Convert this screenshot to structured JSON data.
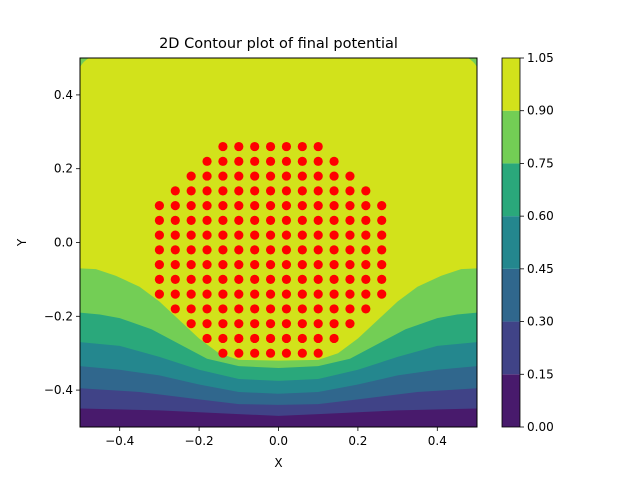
{
  "chart_data": {
    "type": "contour",
    "title": "2D Contour plot of final potential",
    "xlabel": "X",
    "ylabel": "Y",
    "xlim": [
      -0.5,
      0.5
    ],
    "ylim": [
      -0.5,
      0.5
    ],
    "x_ticks": [
      -0.4,
      -0.2,
      0.0,
      0.2,
      0.4
    ],
    "y_ticks": [
      -0.4,
      -0.2,
      0.0,
      0.2,
      0.4
    ],
    "x_tick_labels": [
      "−0.4",
      "−0.2",
      "0.0",
      "0.2",
      "0.4"
    ],
    "y_tick_labels": [
      "−0.4",
      "−0.2",
      "0.0",
      "0.2",
      "0.4"
    ],
    "grid": false,
    "colormap": "viridis",
    "contour_levels": [
      0.0,
      0.15,
      0.3,
      0.45,
      0.6,
      0.75,
      0.9,
      1.05
    ],
    "colorbar": {
      "ticks": [
        "0.00",
        "0.15",
        "0.30",
        "0.45",
        "0.60",
        "0.75",
        "0.90",
        "1.05"
      ],
      "band_colors": [
        "#481a6c",
        "#404387",
        "#30678d",
        "#24878e",
        "#2aa87b",
        "#73ce55",
        "#d2e21b"
      ]
    },
    "band_boundaries": [
      {
        "level": 0.15,
        "points": [
          [
            -0.5,
            -0.45
          ],
          [
            -0.3,
            -0.455
          ],
          [
            -0.1,
            -0.465
          ],
          [
            0.0,
            -0.47
          ],
          [
            0.1,
            -0.465
          ],
          [
            0.3,
            -0.455
          ],
          [
            0.5,
            -0.45
          ]
        ]
      },
      {
        "level": 0.3,
        "points": [
          [
            -0.5,
            -0.395
          ],
          [
            -0.35,
            -0.405
          ],
          [
            -0.2,
            -0.425
          ],
          [
            -0.1,
            -0.438
          ],
          [
            0.0,
            -0.44
          ],
          [
            0.1,
            -0.438
          ],
          [
            0.2,
            -0.425
          ],
          [
            0.35,
            -0.405
          ],
          [
            0.5,
            -0.395
          ]
        ]
      },
      {
        "level": 0.45,
        "points": [
          [
            -0.5,
            -0.335
          ],
          [
            -0.4,
            -0.345
          ],
          [
            -0.3,
            -0.36
          ],
          [
            -0.2,
            -0.385
          ],
          [
            -0.1,
            -0.405
          ],
          [
            0.0,
            -0.41
          ],
          [
            0.1,
            -0.405
          ],
          [
            0.2,
            -0.385
          ],
          [
            0.3,
            -0.36
          ],
          [
            0.4,
            -0.345
          ],
          [
            0.5,
            -0.335
          ]
        ]
      },
      {
        "level": 0.6,
        "points": [
          [
            -0.5,
            -0.27
          ],
          [
            -0.4,
            -0.28
          ],
          [
            -0.3,
            -0.31
          ],
          [
            -0.2,
            -0.345
          ],
          [
            -0.1,
            -0.37
          ],
          [
            0.0,
            -0.375
          ],
          [
            0.1,
            -0.37
          ],
          [
            0.2,
            -0.345
          ],
          [
            0.3,
            -0.31
          ],
          [
            0.4,
            -0.28
          ],
          [
            0.5,
            -0.27
          ]
        ]
      },
      {
        "level": 0.75,
        "points": [
          [
            -0.5,
            -0.19
          ],
          [
            -0.45,
            -0.195
          ],
          [
            -0.4,
            -0.205
          ],
          [
            -0.32,
            -0.235
          ],
          [
            -0.25,
            -0.275
          ],
          [
            -0.18,
            -0.315
          ],
          [
            -0.1,
            -0.335
          ],
          [
            0.0,
            -0.34
          ],
          [
            0.1,
            -0.335
          ],
          [
            0.18,
            -0.315
          ],
          [
            0.25,
            -0.275
          ],
          [
            0.32,
            -0.235
          ],
          [
            0.4,
            -0.205
          ],
          [
            0.45,
            -0.195
          ],
          [
            0.5,
            -0.19
          ]
        ]
      },
      {
        "level": 0.9,
        "points": [
          [
            -0.5,
            -0.07
          ],
          [
            -0.46,
            -0.072
          ],
          [
            -0.41,
            -0.09
          ],
          [
            -0.35,
            -0.12
          ],
          [
            -0.3,
            -0.16
          ],
          [
            -0.25,
            -0.21
          ],
          [
            -0.2,
            -0.26
          ],
          [
            -0.15,
            -0.3
          ],
          [
            -0.1,
            -0.318
          ],
          [
            0.0,
            -0.32
          ],
          [
            0.1,
            -0.318
          ],
          [
            0.15,
            -0.3
          ],
          [
            0.2,
            -0.26
          ],
          [
            0.25,
            -0.21
          ],
          [
            0.3,
            -0.16
          ],
          [
            0.35,
            -0.12
          ],
          [
            0.41,
            -0.09
          ],
          [
            0.46,
            -0.072
          ],
          [
            0.5,
            -0.07
          ]
        ]
      }
    ],
    "corner_low_regions": [
      {
        "corner": "top-left",
        "level": 0.75
      },
      {
        "corner": "top-right",
        "level": 0.75
      }
    ],
    "scatter": {
      "color": "#ff0000",
      "marker": "circle",
      "x_grid": [
        -0.3,
        -0.26,
        -0.22,
        -0.18,
        -0.14,
        -0.1,
        -0.06,
        -0.02,
        0.02,
        0.06,
        0.1,
        0.14,
        0.18,
        0.22,
        0.26
      ],
      "y_grid": [
        0.26,
        0.22,
        0.18,
        0.14,
        0.1,
        0.06,
        0.02,
        -0.02,
        -0.06,
        -0.1,
        -0.14,
        -0.18,
        -0.22,
        -0.26,
        -0.3
      ],
      "rows": [
        {
          "y": 0.26,
          "x_min": -0.14,
          "x_max": 0.1
        },
        {
          "y": 0.22,
          "x_min": -0.18,
          "x_max": 0.14
        },
        {
          "y": 0.18,
          "x_min": -0.22,
          "x_max": 0.18
        },
        {
          "y": 0.14,
          "x_min": -0.26,
          "x_max": 0.22
        },
        {
          "y": 0.1,
          "x_min": -0.3,
          "x_max": 0.26
        },
        {
          "y": 0.06,
          "x_min": -0.3,
          "x_max": 0.26
        },
        {
          "y": 0.02,
          "x_min": -0.3,
          "x_max": 0.26
        },
        {
          "y": -0.02,
          "x_min": -0.3,
          "x_max": 0.26
        },
        {
          "y": -0.06,
          "x_min": -0.3,
          "x_max": 0.26
        },
        {
          "y": -0.1,
          "x_min": -0.3,
          "x_max": 0.26
        },
        {
          "y": -0.14,
          "x_min": -0.3,
          "x_max": 0.26
        },
        {
          "y": -0.18,
          "x_min": -0.26,
          "x_max": 0.22
        },
        {
          "y": -0.22,
          "x_min": -0.22,
          "x_max": 0.18
        },
        {
          "y": -0.26,
          "x_min": -0.18,
          "x_max": 0.14
        },
        {
          "y": -0.3,
          "x_min": -0.14,
          "x_max": 0.1
        }
      ]
    }
  }
}
